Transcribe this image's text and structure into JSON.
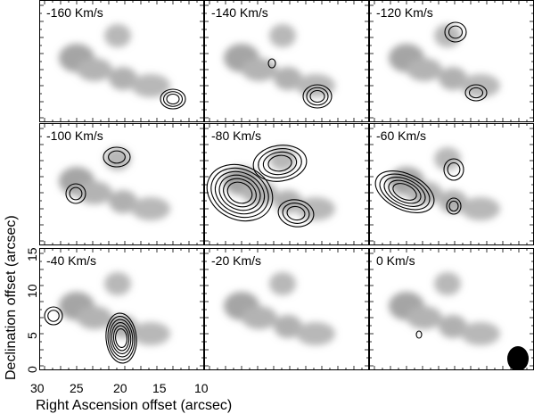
{
  "figure": {
    "panels": [
      {
        "label": "-160 Km/s"
      },
      {
        "label": "-140 Km/s"
      },
      {
        "label": "-120 Km/s"
      },
      {
        "label": "-100 Km/s"
      },
      {
        "label": "-80 Km/s"
      },
      {
        "label": "-60 Km/s"
      },
      {
        "label": "-40 Km/s"
      },
      {
        "label": "-20 Km/s"
      },
      {
        "label": "0 Km/s"
      }
    ],
    "xlabel": "Right Ascension offset (arcsec)",
    "ylabel": "Declination offset (arcsec)",
    "x_ticks": [
      "30",
      "25",
      "20",
      "15",
      "10"
    ],
    "y_ticks": [
      "0",
      "5",
      "10",
      "15"
    ],
    "colors": {
      "contour": "#000000",
      "background_emission": "#9a9a9a",
      "frame": "#000000"
    }
  }
}
